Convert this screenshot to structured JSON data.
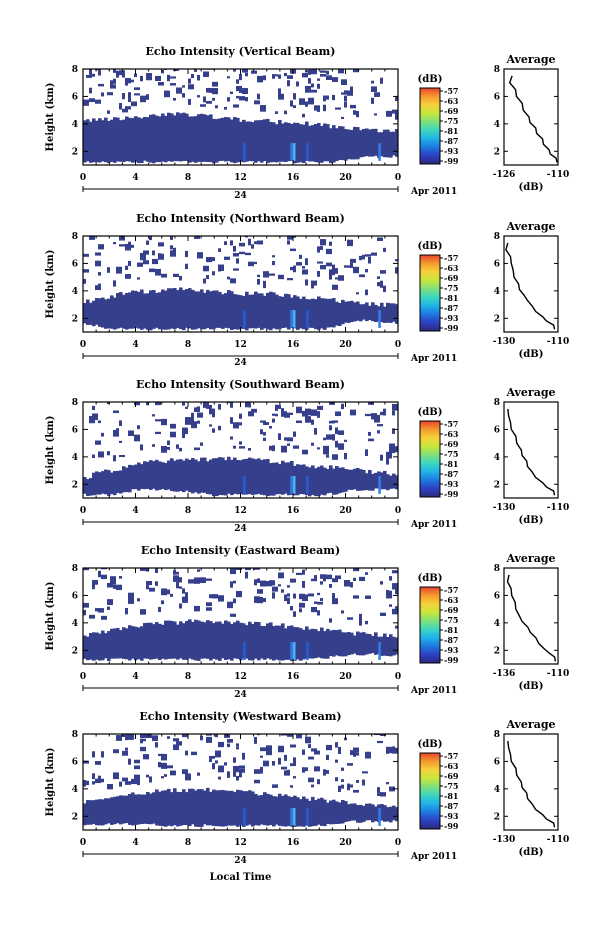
{
  "figure": {
    "xlabel": "Local Time",
    "date_label": "Apr 2011",
    "day_label": "24"
  },
  "chart_data": [
    {
      "type": "heatmap",
      "title": "Echo Intensity (Vertical Beam)",
      "ylabel": "Height (km)",
      "xlim": [
        0,
        24
      ],
      "x_ticks": [
        "0",
        "4",
        "8",
        "12",
        "16",
        "20",
        "0"
      ],
      "ylim": [
        1,
        8
      ],
      "y_ticks": [
        "2",
        "4",
        "6",
        "8"
      ],
      "colorbar": {
        "unit": "(dB)",
        "ticks": [
          "-57",
          "-63",
          "-69",
          "-75",
          "-81",
          "-87",
          "-93",
          "-99"
        ]
      },
      "echo_top_km": [
        4.2,
        4.3,
        4.3,
        4.4,
        4.5,
        4.6,
        4.6,
        4.7,
        4.7,
        4.6,
        4.5,
        4.4,
        4.3,
        4.3,
        4.2,
        4.1,
        4.0,
        4.0,
        3.9,
        3.8,
        3.7,
        3.6,
        3.6,
        3.5,
        3.5
      ],
      "echo_base_km": [
        1.2,
        1.2,
        1.2,
        1.2,
        1.2,
        1.2,
        1.2,
        1.2,
        1.2,
        1.2,
        1.2,
        1.2,
        1.2,
        1.2,
        1.2,
        1.2,
        1.2,
        1.2,
        1.2,
        1.2,
        1.4,
        1.5,
        1.6,
        1.6,
        1.6
      ],
      "average": {
        "title": "Average",
        "xlabel": "(dB)",
        "xlim": [
          -126,
          -110
        ],
        "x_ticks": [
          "-126",
          "-110"
        ],
        "ylim": [
          1,
          8
        ],
        "y_ticks": [
          "2",
          "4",
          "6",
          "8"
        ],
        "profile_db": [
          -110,
          -111,
          -112,
          -113,
          -114,
          -115,
          -116,
          -117,
          -118,
          -119,
          -120,
          -121,
          -122,
          -123,
          -124,
          -124
        ],
        "profile_height_km": [
          1.2,
          1.5,
          1.8,
          2.1,
          2.5,
          2.9,
          3.3,
          3.7,
          4.1,
          4.5,
          5.0,
          5.5,
          6.0,
          6.5,
          7.0,
          7.5
        ]
      }
    },
    {
      "type": "heatmap",
      "title": "Echo Intensity (Northward Beam)",
      "ylabel": "Height (km)",
      "xlim": [
        0,
        24
      ],
      "x_ticks": [
        "0",
        "4",
        "8",
        "12",
        "16",
        "20",
        "0"
      ],
      "ylim": [
        1,
        8
      ],
      "y_ticks": [
        "2",
        "4",
        "6",
        "8"
      ],
      "colorbar": {
        "unit": "(dB)",
        "ticks": [
          "-57",
          "-63",
          "-69",
          "-75",
          "-81",
          "-87",
          "-93",
          "-99"
        ]
      },
      "echo_top_km": [
        3.2,
        3.4,
        3.6,
        3.8,
        3.9,
        4.0,
        4.0,
        4.1,
        4.1,
        4.0,
        3.9,
        3.9,
        3.8,
        3.8,
        3.8,
        3.7,
        3.6,
        3.5,
        3.4,
        3.3,
        3.2,
        3.1,
        3.0,
        3.0,
        3.0
      ],
      "echo_base_km": [
        1.6,
        1.4,
        1.2,
        1.2,
        1.2,
        1.2,
        1.2,
        1.2,
        1.2,
        1.2,
        1.2,
        1.2,
        1.2,
        1.2,
        1.2,
        1.2,
        1.2,
        1.2,
        1.2,
        1.3,
        1.6,
        1.8,
        1.8,
        1.7,
        1.6
      ],
      "average": {
        "title": "Average",
        "xlabel": "(dB)",
        "xlim": [
          -130,
          -110
        ],
        "x_ticks": [
          "-130",
          "-110"
        ],
        "ylim": [
          1,
          8
        ],
        "y_ticks": [
          "2",
          "4",
          "6",
          "8"
        ],
        "profile_db": [
          -111,
          -112,
          -114,
          -116,
          -118,
          -120,
          -121,
          -123,
          -124,
          -125,
          -126,
          -127,
          -127,
          -128,
          -129,
          -129
        ],
        "profile_height_km": [
          1.2,
          1.5,
          1.8,
          2.1,
          2.5,
          2.9,
          3.3,
          3.7,
          4.1,
          4.5,
          5.0,
          5.5,
          6.0,
          6.5,
          7.0,
          7.5
        ]
      }
    },
    {
      "type": "heatmap",
      "title": "Echo Intensity (Southward Beam)",
      "ylabel": "Height (km)",
      "xlim": [
        0,
        24
      ],
      "x_ticks": [
        "0",
        "4",
        "8",
        "12",
        "16",
        "20",
        "0"
      ],
      "ylim": [
        1,
        8
      ],
      "y_ticks": [
        "2",
        "4",
        "6",
        "8"
      ],
      "colorbar": {
        "unit": "(dB)",
        "ticks": [
          "-57",
          "-63",
          "-69",
          "-75",
          "-81",
          "-87",
          "-93",
          "-99"
        ]
      },
      "echo_top_km": [
        2.4,
        2.8,
        3.0,
        3.2,
        3.4,
        3.6,
        3.7,
        3.8,
        3.8,
        3.8,
        3.9,
        3.9,
        3.9,
        3.8,
        3.7,
        3.6,
        3.5,
        3.4,
        3.3,
        3.2,
        3.1,
        3.0,
        2.9,
        2.8,
        2.8
      ],
      "echo_base_km": [
        1.2,
        1.2,
        1.2,
        1.4,
        1.6,
        1.6,
        1.6,
        1.5,
        1.4,
        1.3,
        1.2,
        1.2,
        1.2,
        1.2,
        1.2,
        1.2,
        1.2,
        1.2,
        1.2,
        1.3,
        1.5,
        1.6,
        1.6,
        1.6,
        1.6
      ],
      "average": {
        "title": "Average",
        "xlabel": "(dB)",
        "xlim": [
          -130,
          -110
        ],
        "x_ticks": [
          "-130",
          "-110"
        ],
        "ylim": [
          1,
          8
        ],
        "y_ticks": [
          "2",
          "4",
          "6",
          "8"
        ],
        "profile_db": [
          -111,
          -112,
          -114,
          -116,
          -118,
          -120,
          -121,
          -122,
          -123,
          -124,
          -125,
          -126,
          -127,
          -128,
          -128,
          -129
        ],
        "profile_height_km": [
          1.2,
          1.5,
          1.8,
          2.1,
          2.5,
          2.9,
          3.3,
          3.7,
          4.1,
          4.5,
          5.0,
          5.5,
          6.0,
          6.5,
          7.0,
          7.5
        ]
      }
    },
    {
      "type": "heatmap",
      "title": "Echo Intensity (Eastward Beam)",
      "ylabel": "Height (km)",
      "xlim": [
        0,
        24
      ],
      "x_ticks": [
        "0",
        "4",
        "8",
        "12",
        "16",
        "20",
        "0"
      ],
      "ylim": [
        1,
        8
      ],
      "y_ticks": [
        "2",
        "4",
        "6",
        "8"
      ],
      "colorbar": {
        "unit": "(dB)",
        "ticks": [
          "-57",
          "-63",
          "-69",
          "-75",
          "-81",
          "-87",
          "-93",
          "-99"
        ]
      },
      "echo_top_km": [
        3.0,
        3.2,
        3.4,
        3.6,
        3.8,
        3.9,
        4.0,
        4.0,
        4.1,
        4.1,
        4.1,
        4.0,
        4.0,
        3.9,
        3.9,
        3.8,
        3.7,
        3.6,
        3.5,
        3.4,
        3.3,
        3.2,
        3.2,
        3.1,
        3.0
      ],
      "echo_base_km": [
        1.3,
        1.3,
        1.3,
        1.3,
        1.3,
        1.3,
        1.3,
        1.3,
        1.3,
        1.3,
        1.3,
        1.3,
        1.3,
        1.3,
        1.3,
        1.3,
        1.3,
        1.3,
        1.4,
        1.5,
        1.6,
        1.7,
        1.7,
        1.6,
        1.6
      ],
      "average": {
        "title": "Average",
        "xlabel": "(dB)",
        "xlim": [
          -136,
          -110
        ],
        "x_ticks": [
          "-136",
          "-110"
        ],
        "ylim": [
          1,
          8
        ],
        "y_ticks": [
          "2",
          "4",
          "6",
          "8"
        ],
        "profile_db": [
          -111,
          -112,
          -114,
          -117,
          -119,
          -121,
          -123,
          -125,
          -127,
          -129,
          -130,
          -131,
          -132,
          -133,
          -134,
          -134
        ],
        "profile_height_km": [
          1.2,
          1.5,
          1.8,
          2.1,
          2.5,
          2.9,
          3.3,
          3.7,
          4.1,
          4.5,
          5.0,
          5.5,
          6.0,
          6.5,
          7.0,
          7.5
        ]
      }
    },
    {
      "type": "heatmap",
      "title": "Echo Intensity (Westward Beam)",
      "ylabel": "Height (km)",
      "xlim": [
        0,
        24
      ],
      "x_ticks": [
        "0",
        "4",
        "8",
        "12",
        "16",
        "20",
        "0"
      ],
      "ylim": [
        1,
        8
      ],
      "y_ticks": [
        "2",
        "4",
        "6",
        "8"
      ],
      "colorbar": {
        "unit": "(dB)",
        "ticks": [
          "-57",
          "-63",
          "-69",
          "-75",
          "-81",
          "-87",
          "-93",
          "-99"
        ]
      },
      "echo_top_km": [
        3.0,
        3.2,
        3.4,
        3.6,
        3.7,
        3.8,
        3.8,
        3.9,
        3.9,
        3.9,
        3.9,
        3.8,
        3.8,
        3.7,
        3.6,
        3.5,
        3.4,
        3.3,
        3.2,
        3.1,
        3.0,
        2.9,
        2.8,
        2.7,
        2.6
      ],
      "echo_base_km": [
        1.4,
        1.4,
        1.4,
        1.4,
        1.4,
        1.4,
        1.3,
        1.3,
        1.3,
        1.3,
        1.3,
        1.3,
        1.3,
        1.3,
        1.3,
        1.3,
        1.3,
        1.3,
        1.3,
        1.4,
        1.6,
        1.6,
        1.6,
        1.6,
        1.6
      ],
      "average": {
        "title": "Average",
        "xlabel": "(dB)",
        "xlim": [
          -130,
          -110
        ],
        "x_ticks": [
          "-130",
          "-110"
        ],
        "ylim": [
          1,
          8
        ],
        "y_ticks": [
          "2",
          "4",
          "6",
          "8"
        ],
        "profile_db": [
          -111,
          -112,
          -114,
          -116,
          -118,
          -120,
          -121,
          -122,
          -123,
          -124,
          -125,
          -126,
          -127,
          -128,
          -128,
          -129
        ],
        "profile_height_km": [
          1.2,
          1.5,
          1.8,
          2.1,
          2.5,
          2.9,
          3.3,
          3.7,
          4.1,
          4.5,
          5.0,
          5.5,
          6.0,
          6.5,
          7.0,
          7.5
        ]
      }
    }
  ],
  "colors": {
    "echo_fill": "#363f8c",
    "colorscale": [
      "#2a2a7a",
      "#2e3fc4",
      "#1f78e0",
      "#1fb3e8",
      "#3dd6c0",
      "#7fe07a",
      "#c8e63c",
      "#f5d23a",
      "#f59a2e",
      "#e8452c"
    ]
  }
}
